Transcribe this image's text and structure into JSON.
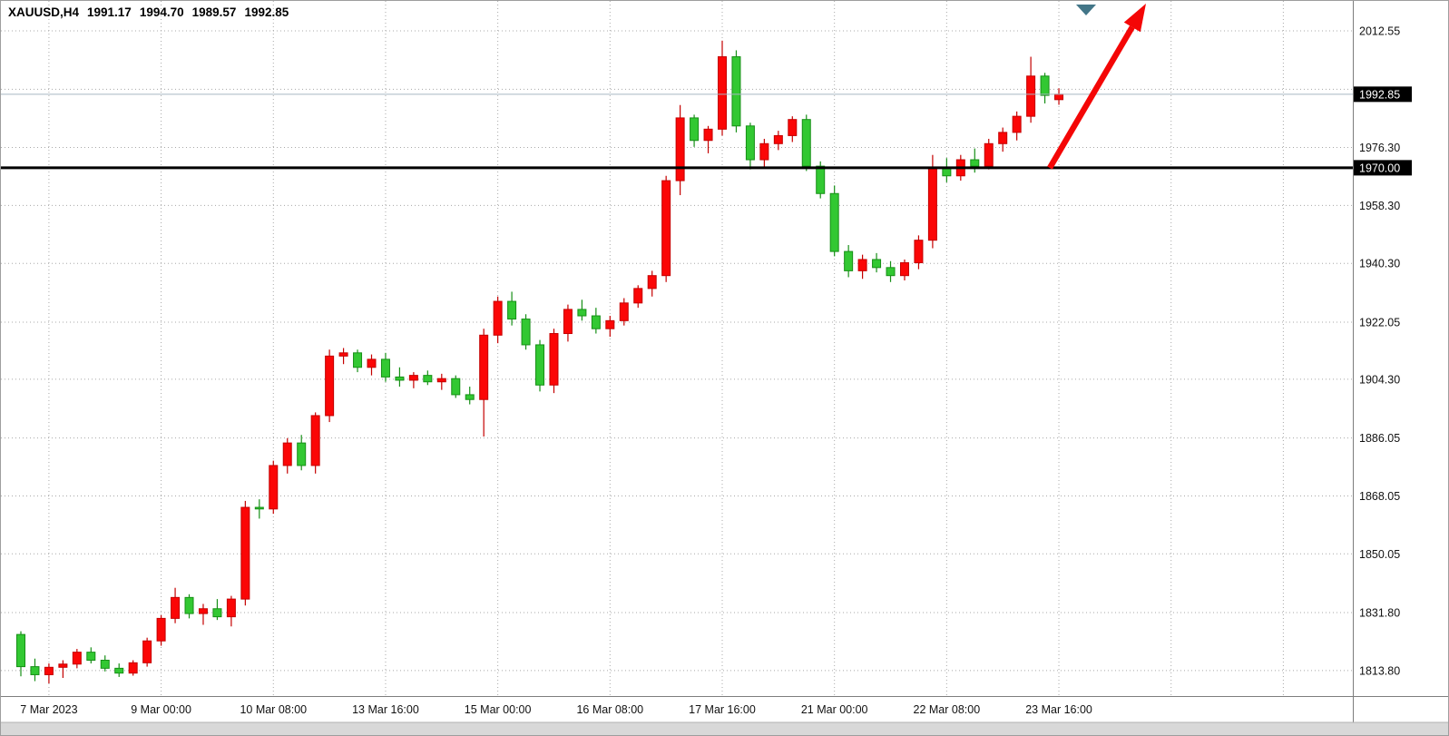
{
  "header": {
    "symbol_period": "XAUUSD,H4",
    "quote": {
      "open": "1991.17",
      "high": "1994.70",
      "low": "1989.57",
      "close": "1992.85"
    }
  },
  "colors": {
    "background": "#ffffff",
    "grid": "#a8a8a8",
    "bull_fill": "#fb0606",
    "bull_stroke": "#c40000",
    "bear_fill": "#32c832",
    "bear_stroke": "#168f16",
    "axis_text": "#111111",
    "badge_bg": "#000000",
    "badge_text": "#ffffff",
    "bid_line": "#a6b6c2",
    "hline": "#000000",
    "arrow": "#f40606",
    "marker": "#437688",
    "separator": "#7d7d7d",
    "bottom_strip": "#d8d8d8"
  },
  "chart_data": {
    "type": "candlestick",
    "title": "XAUUSD,H4",
    "symbol": "XAUUSD",
    "timeframe": "H4",
    "bull_style": "red",
    "bear_style": "green",
    "ylim": [
      1809.8,
      2012.55
    ],
    "current_quote": {
      "open": 1991.17,
      "high": 1994.7,
      "low": 1989.57,
      "close": 1992.85
    },
    "price_axis_ticks": [
      {
        "price": 2012.55,
        "label": "2012.55"
      },
      {
        "price": 1994.4,
        "label": ""
      },
      {
        "price": 1976.3,
        "label": "1976.30"
      },
      {
        "price": 1958.3,
        "label": "1958.30"
      },
      {
        "price": 1940.3,
        "label": "1940.30"
      },
      {
        "price": 1922.05,
        "label": "1922.05"
      },
      {
        "price": 1904.3,
        "label": "1904.30"
      },
      {
        "price": 1886.05,
        "label": "1886.05"
      },
      {
        "price": 1868.05,
        "label": "1868.05"
      },
      {
        "price": 1850.05,
        "label": "1850.05"
      },
      {
        "price": 1831.8,
        "label": "1831.80"
      },
      {
        "price": 1813.8,
        "label": "1813.80"
      }
    ],
    "price_badges": [
      {
        "price": 1992.85,
        "label": "1992.85",
        "kind": "bid"
      },
      {
        "price": 1970.0,
        "label": "1970.00",
        "kind": "hline"
      }
    ],
    "time_axis_ticks": [
      {
        "index": 2,
        "label": "7 Mar 2023"
      },
      {
        "index": 10,
        "label": "9 Mar 00:00"
      },
      {
        "index": 18,
        "label": "10 Mar 08:00"
      },
      {
        "index": 26,
        "label": "13 Mar 16:00"
      },
      {
        "index": 34,
        "label": "15 Mar 00:00"
      },
      {
        "index": 42,
        "label": "16 Mar 08:00"
      },
      {
        "index": 50,
        "label": "17 Mar 16:00"
      },
      {
        "index": 58,
        "label": "21 Mar 00:00"
      },
      {
        "index": 66,
        "label": "22 Mar 08:00"
      },
      {
        "index": 74,
        "label": "23 Mar 16:00"
      },
      {
        "index": 82,
        "label": ""
      },
      {
        "index": 90,
        "label": ""
      }
    ],
    "candles": [
      [
        1825.0,
        1826.0,
        1812.0,
        1815.0
      ],
      [
        1815.0,
        1817.5,
        1810.5,
        1812.5
      ],
      [
        1812.5,
        1816.0,
        1809.8,
        1814.8
      ],
      [
        1814.8,
        1817.0,
        1811.5,
        1815.8
      ],
      [
        1815.8,
        1820.5,
        1814.5,
        1819.5
      ],
      [
        1819.5,
        1821.0,
        1816.0,
        1817.0
      ],
      [
        1817.0,
        1818.5,
        1813.5,
        1814.5
      ],
      [
        1814.5,
        1816.0,
        1811.8,
        1813.0
      ],
      [
        1813.0,
        1817.0,
        1812.2,
        1816.2
      ],
      [
        1816.2,
        1824.0,
        1815.0,
        1823.0
      ],
      [
        1823.0,
        1831.0,
        1821.5,
        1830.0
      ],
      [
        1830.0,
        1839.5,
        1828.5,
        1836.5
      ],
      [
        1836.5,
        1837.5,
        1830.0,
        1831.5
      ],
      [
        1831.5,
        1834.5,
        1828.0,
        1833.0
      ],
      [
        1833.0,
        1836.0,
        1829.5,
        1830.5
      ],
      [
        1830.5,
        1837.0,
        1827.5,
        1836.0
      ],
      [
        1836.0,
        1866.5,
        1834.0,
        1864.5
      ],
      [
        1864.5,
        1867.0,
        1861.0,
        1864.0
      ],
      [
        1864.0,
        1879.0,
        1862.5,
        1877.5
      ],
      [
        1877.5,
        1886.0,
        1875.0,
        1884.5
      ],
      [
        1884.5,
        1887.0,
        1876.0,
        1877.5
      ],
      [
        1877.5,
        1894.0,
        1875.0,
        1893.0
      ],
      [
        1893.0,
        1913.5,
        1891.0,
        1911.5
      ],
      [
        1911.5,
        1914.0,
        1909.0,
        1912.5
      ],
      [
        1912.5,
        1913.5,
        1906.5,
        1908.0
      ],
      [
        1908.0,
        1912.0,
        1905.5,
        1910.5
      ],
      [
        1910.5,
        1912.5,
        1903.5,
        1905.0
      ],
      [
        1905.0,
        1908.0,
        1902.0,
        1904.0
      ],
      [
        1904.0,
        1906.5,
        1901.5,
        1905.5
      ],
      [
        1905.5,
        1907.0,
        1902.5,
        1903.5
      ],
      [
        1903.5,
        1906.0,
        1901.0,
        1904.5
      ],
      [
        1904.5,
        1905.5,
        1898.5,
        1899.5
      ],
      [
        1899.5,
        1902.0,
        1896.5,
        1898.0
      ],
      [
        1898.0,
        1920.0,
        1886.5,
        1918.0
      ],
      [
        1918.0,
        1930.0,
        1915.5,
        1928.5
      ],
      [
        1928.5,
        1931.5,
        1921.0,
        1923.0
      ],
      [
        1923.0,
        1924.5,
        1913.5,
        1915.0
      ],
      [
        1915.0,
        1916.5,
        1900.5,
        1902.5
      ],
      [
        1902.5,
        1920.0,
        1900.0,
        1918.5
      ],
      [
        1918.5,
        1927.5,
        1916.0,
        1926.0
      ],
      [
        1926.0,
        1929.0,
        1922.5,
        1924.0
      ],
      [
        1924.0,
        1926.5,
        1918.5,
        1920.0
      ],
      [
        1920.0,
        1924.0,
        1917.5,
        1922.5
      ],
      [
        1922.5,
        1929.5,
        1921.0,
        1928.0
      ],
      [
        1928.0,
        1933.5,
        1926.5,
        1932.5
      ],
      [
        1932.5,
        1938.0,
        1930.0,
        1936.5
      ],
      [
        1936.5,
        1967.5,
        1934.5,
        1966.0
      ],
      [
        1966.0,
        1989.5,
        1961.5,
        1985.5
      ],
      [
        1985.5,
        1986.5,
        1976.5,
        1978.5
      ],
      [
        1978.5,
        1983.0,
        1974.5,
        1982.0
      ],
      [
        1982.0,
        2009.5,
        1980.0,
        2004.5
      ],
      [
        2004.5,
        2006.5,
        1981.0,
        1983.0
      ],
      [
        1983.0,
        1984.0,
        1969.5,
        1972.5
      ],
      [
        1972.5,
        1979.0,
        1970.0,
        1977.5
      ],
      [
        1977.5,
        1981.5,
        1975.5,
        1980.0
      ],
      [
        1980.0,
        1986.0,
        1978.0,
        1985.0
      ],
      [
        1985.0,
        1986.5,
        1969.0,
        1970.5
      ],
      [
        1970.5,
        1972.0,
        1960.5,
        1962.0
      ],
      [
        1962.0,
        1964.5,
        1942.5,
        1944.0
      ],
      [
        1944.0,
        1946.0,
        1936.0,
        1938.0
      ],
      [
        1938.0,
        1943.0,
        1935.5,
        1941.5
      ],
      [
        1941.5,
        1943.5,
        1937.5,
        1939.0
      ],
      [
        1939.0,
        1941.0,
        1934.5,
        1936.5
      ],
      [
        1936.5,
        1941.5,
        1935.0,
        1940.5
      ],
      [
        1940.5,
        1949.0,
        1938.5,
        1947.5
      ],
      [
        1947.5,
        1974.0,
        1945.0,
        1970.0
      ],
      [
        1970.0,
        1973.0,
        1965.5,
        1967.5
      ],
      [
        1967.5,
        1974.0,
        1966.0,
        1972.5
      ],
      [
        1972.5,
        1976.0,
        1968.5,
        1970.5
      ],
      [
        1970.5,
        1979.0,
        1969.5,
        1977.5
      ],
      [
        1977.5,
        1982.5,
        1975.0,
        1981.0
      ],
      [
        1981.0,
        1987.5,
        1978.5,
        1986.0
      ],
      [
        1986.0,
        2004.5,
        1984.0,
        1998.5
      ],
      [
        1998.5,
        1999.5,
        1990.0,
        1992.5
      ],
      [
        1991.17,
        1994.7,
        1989.57,
        1992.85
      ]
    ]
  },
  "annotations": {
    "horizontal_line_price": 1970.0,
    "bid_line_price": 1992.85,
    "trend_arrow": {
      "from": [
        1156,
        184
      ],
      "to": [
        1262,
        3
      ]
    },
    "top_marker_triangle": [
      [
        1185,
        4
      ],
      [
        1207,
        4
      ],
      [
        1196,
        16
      ]
    ]
  }
}
